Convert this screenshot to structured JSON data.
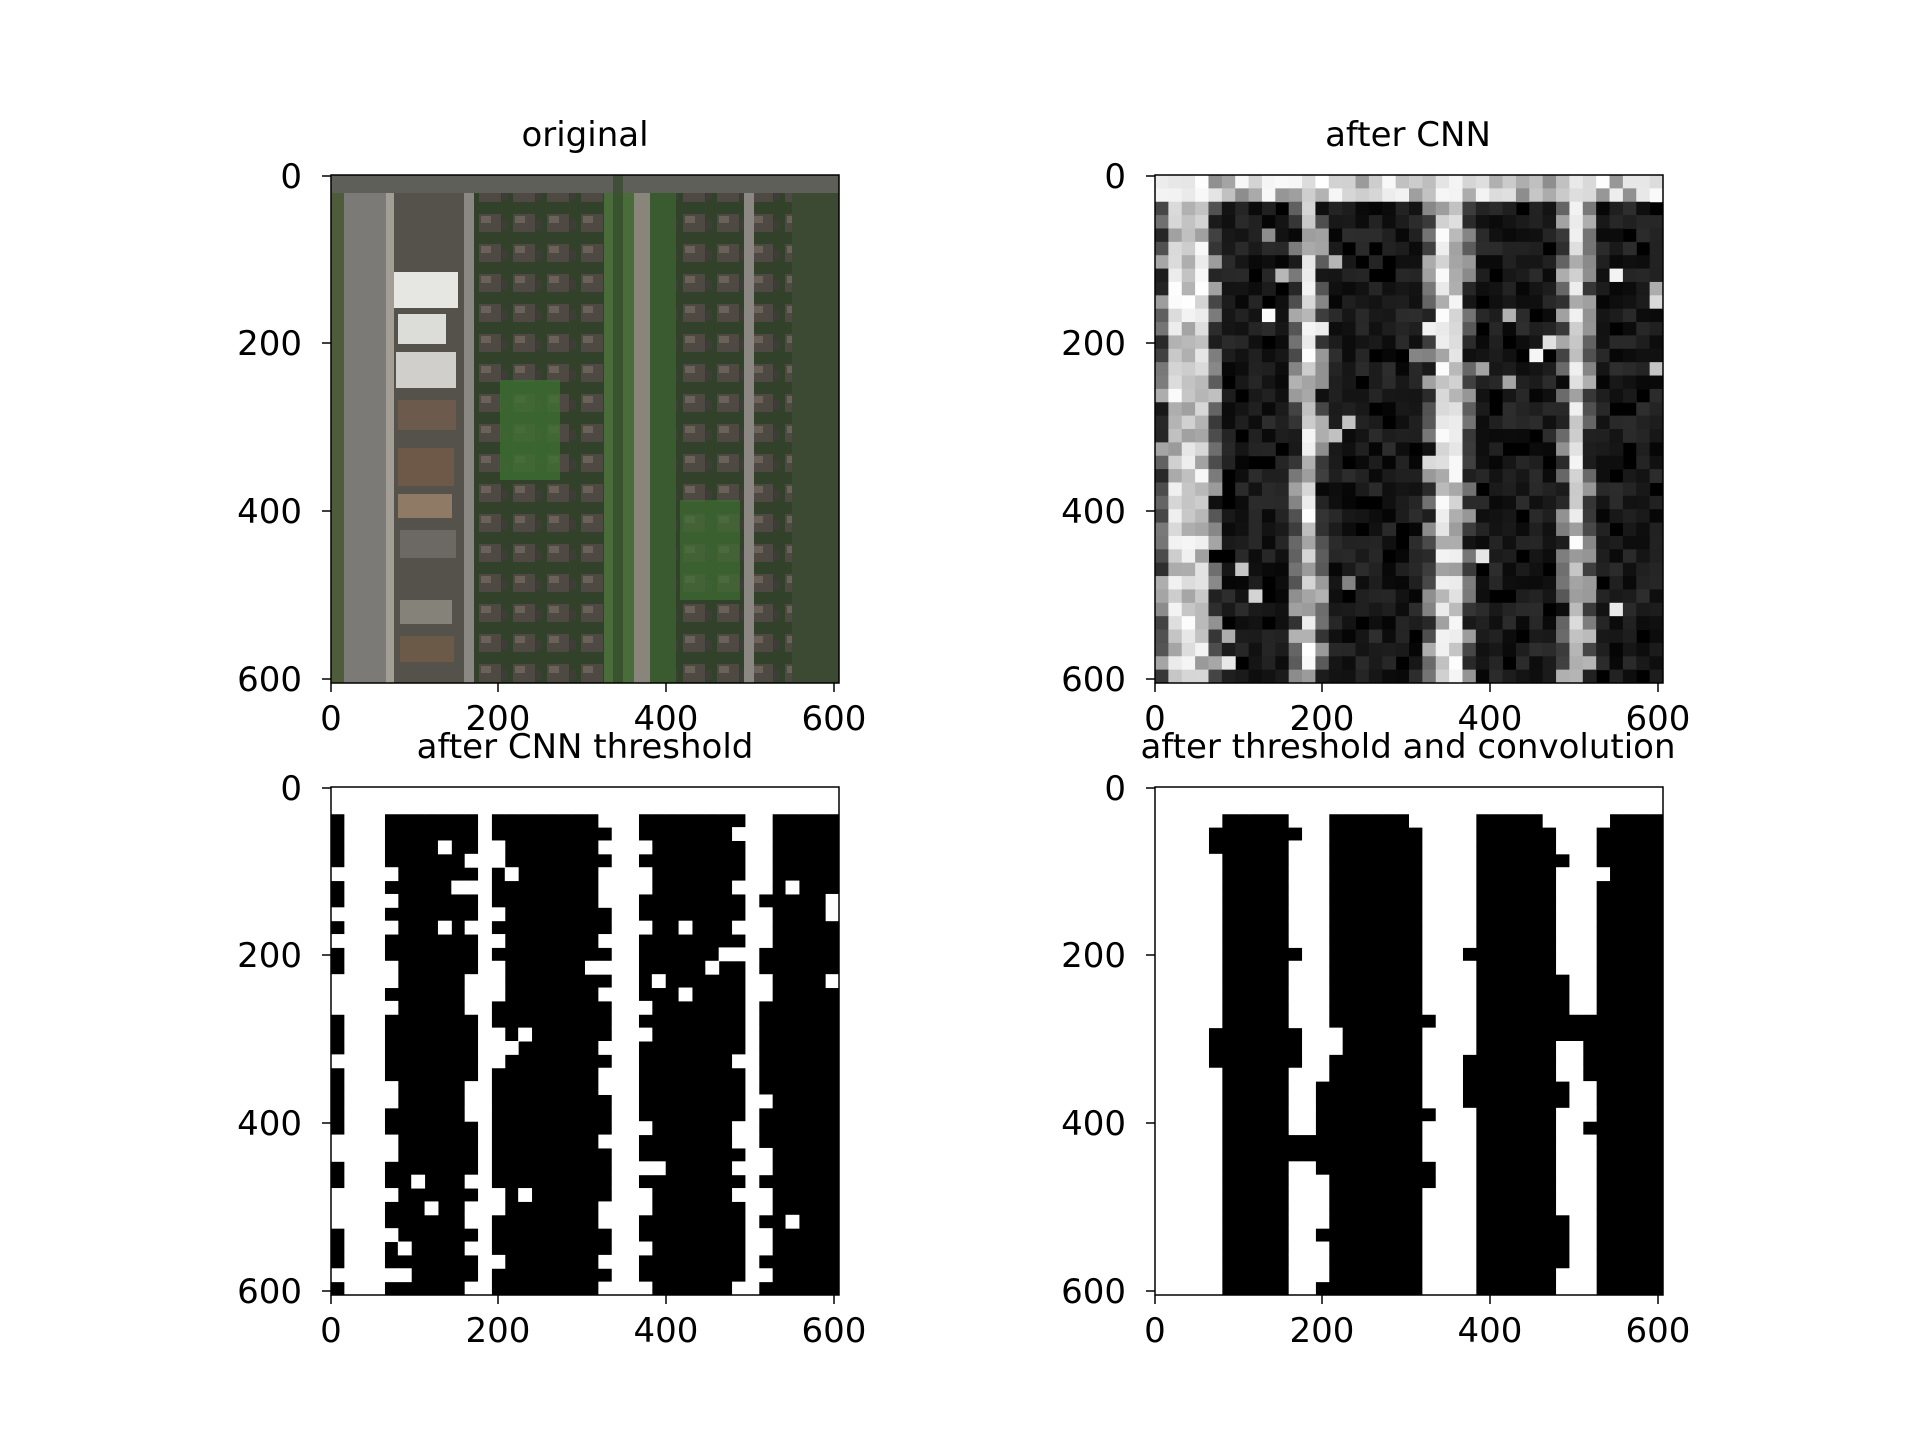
{
  "figure": {
    "background": "#ffffff"
  },
  "chart_data": [
    {
      "type": "heatmap",
      "title": "original",
      "content": "aerial photograph of a residential neighborhood: a road with parked cars on the left, rows of houses with green yards, a tree-lined street in the middle",
      "xlim": [
        0,
        608
      ],
      "ylim": [
        608,
        0
      ],
      "xticks": [
        0,
        200,
        400,
        600
      ],
      "yticks": [
        0,
        200,
        400,
        600
      ],
      "xticklabels": [
        "0",
        "200",
        "400",
        "600"
      ],
      "yticklabels": [
        "0",
        "200",
        "400",
        "600"
      ]
    },
    {
      "type": "heatmap",
      "title": "after CNN",
      "colormap": "gray",
      "grid_size": 38,
      "content": "grayscale road-probability map; bright vertical bands near x≈40, x≈180, x≈350 and x≈505, a bright horizontal band across the top rows",
      "xlim": [
        0,
        608
      ],
      "ylim": [
        608,
        0
      ],
      "xticks": [
        0,
        200,
        400,
        600
      ],
      "yticks": [
        0,
        200,
        400,
        600
      ],
      "xticklabels": [
        "0",
        "200",
        "400",
        "600"
      ],
      "yticklabels": [
        "0",
        "200",
        "400",
        "600"
      ]
    },
    {
      "type": "heatmap",
      "title": "after CNN threshold",
      "colormap": "binary",
      "grid_size": 38,
      "content": "binary mask of thresholded CNN output",
      "xlim": [
        0,
        608
      ],
      "ylim": [
        608,
        0
      ],
      "xticks": [
        0,
        200,
        400,
        600
      ],
      "yticks": [
        0,
        200,
        400,
        600
      ],
      "xticklabels": [
        "0",
        "200",
        "400",
        "600"
      ],
      "yticklabels": [
        "0",
        "200",
        "400",
        "600"
      ]
    },
    {
      "type": "heatmap",
      "title": "after threshold and convolution",
      "colormap": "binary",
      "grid_size": 38,
      "content": "binary mask after threshold and smoothing convolution",
      "xlim": [
        0,
        608
      ],
      "ylim": [
        608,
        0
      ],
      "xticks": [
        0,
        200,
        400,
        600
      ],
      "yticks": [
        0,
        200,
        400,
        600
      ],
      "xticklabels": [
        "0",
        "200",
        "400",
        "600"
      ],
      "yticklabels": [
        "0",
        "200",
        "400",
        "600"
      ]
    }
  ]
}
